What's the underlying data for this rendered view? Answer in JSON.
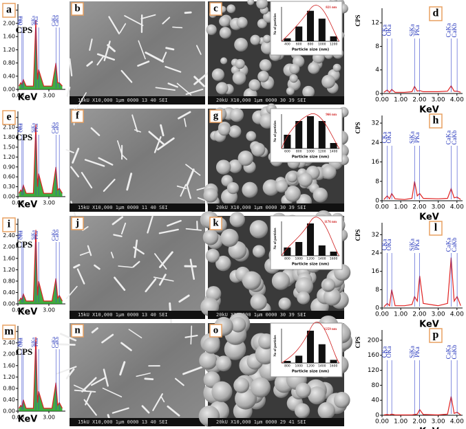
{
  "chart_data": [
    {
      "type": "line",
      "label": "a",
      "x_label": "KeV",
      "y_label": "CPS",
      "color": "#1e9e1e",
      "x": [
        0.1,
        0.28,
        0.39,
        0.52,
        0.8,
        1.5,
        1.74,
        1.9,
        2.01,
        2.5,
        3.3,
        3.69,
        3.85,
        4.01,
        4.3
      ],
      "values": [
        0.1,
        0.2,
        0.15,
        0.3,
        0.1,
        0.1,
        2.1,
        0.3,
        0.6,
        0.1,
        0.1,
        0.8,
        0.2,
        0.2,
        0.1
      ],
      "xlim": [
        0,
        4.6
      ],
      "ylim": [
        0,
        2.5
      ],
      "xticks": [
        {
          "value": 0,
          "label": "0.00"
        },
        {
          "value": 3,
          "label": "3.00"
        }
      ],
      "yticks": [
        {
          "value": 0,
          "label": "0.00"
        },
        {
          "value": 0.4,
          "label": "0.40"
        },
        {
          "value": 0.8,
          "label": "0.80"
        },
        {
          "value": 1.2,
          "label": "1.20"
        },
        {
          "value": 1.6,
          "label": "1.60"
        },
        {
          "value": 2,
          "label": "2.00"
        },
        {
          "value": 2.4,
          "label": "2.4"
        }
      ],
      "annotations": [
        {
          "text": "NKa",
          "x": 0.39
        },
        {
          "text": "OKa",
          "x": 0.52
        },
        {
          "text": "SiKa",
          "x": 1.74
        },
        {
          "text": "PKa",
          "x": 2.01
        },
        {
          "text": "CaKa",
          "x": 3.69
        },
        {
          "text": "CaKb",
          "x": 4.01
        }
      ]
    },
    {
      "type": "bar",
      "label": "c",
      "title": "821 nm",
      "x_label": "Particle size (nm)",
      "y_label": "No of particles",
      "color": "#111111",
      "categories": [
        "400",
        "600",
        "800",
        "1000",
        "1200"
      ],
      "values": [
        6,
        30,
        62,
        46,
        10
      ],
      "ylim": [
        0,
        70
      ]
    },
    {
      "type": "line",
      "label": "d",
      "x_label": "KeV",
      "y_label": "CPS",
      "color": "#e02020",
      "x": [
        0.1,
        0.28,
        0.4,
        0.52,
        0.7,
        1.2,
        1.6,
        1.74,
        1.88,
        2.01,
        2.2,
        3.0,
        3.5,
        3.69,
        3.85,
        4.01,
        4.2
      ],
      "values": [
        0.2,
        0.6,
        0.2,
        0.7,
        0.2,
        0.2,
        0.3,
        1.2,
        0.4,
        0.5,
        0.3,
        0.3,
        0.4,
        1.3,
        0.4,
        0.4,
        0.2
      ],
      "xlim": [
        0,
        4.3
      ],
      "ylim": [
        0,
        14
      ],
      "xticks": [
        {
          "value": 0,
          "label": "0.00"
        },
        {
          "value": 1,
          "label": "1.00"
        },
        {
          "value": 2,
          "label": "2.00"
        },
        {
          "value": 3,
          "label": "3.00"
        },
        {
          "value": 4,
          "label": "4.00"
        }
      ],
      "yticks": [
        0,
        4,
        8,
        12
      ],
      "annotations": [
        {
          "text": "CKa",
          "x": 0.28
        },
        {
          "text": "OKa",
          "x": 0.52
        },
        {
          "text": "SiKa",
          "x": 1.74
        },
        {
          "text": "PKa",
          "x": 2.01
        },
        {
          "text": "CaKa",
          "x": 3.69
        },
        {
          "text": "CaKb",
          "x": 4.01
        }
      ]
    },
    {
      "type": "line",
      "label": "e",
      "x_label": "KeV",
      "y_label": "CPS",
      "color": "#1e9e1e",
      "x": [
        0.1,
        0.28,
        0.39,
        0.52,
        0.8,
        1.5,
        1.74,
        1.9,
        2.01,
        2.5,
        3.3,
        3.69,
        3.85,
        4.01,
        4.3
      ],
      "values": [
        0.1,
        0.2,
        0.15,
        0.35,
        0.1,
        0.1,
        2.2,
        0.3,
        0.7,
        0.1,
        0.1,
        0.9,
        0.2,
        0.25,
        0.1
      ],
      "xlim": [
        0,
        4.6
      ],
      "ylim": [
        0,
        2.5
      ],
      "xticks": [
        {
          "value": 0,
          "label": "0.00"
        },
        {
          "value": 3,
          "label": "3.00"
        }
      ],
      "yticks": [
        {
          "value": 0,
          "label": "0.00"
        },
        {
          "value": 0.3,
          "label": "0.30"
        },
        {
          "value": 0.6,
          "label": "0.60"
        },
        {
          "value": 0.9,
          "label": "0.90"
        },
        {
          "value": 1.2,
          "label": "1.20"
        },
        {
          "value": 1.5,
          "label": "1.50"
        },
        {
          "value": 1.8,
          "label": "1.80"
        },
        {
          "value": 2.1,
          "label": "2.10"
        },
        {
          "value": 2.4,
          "label": "2.40"
        }
      ],
      "annotations": [
        {
          "text": "NKa",
          "x": 0.39
        },
        {
          "text": "OKa",
          "x": 0.52
        },
        {
          "text": "SiKa",
          "x": 1.74
        },
        {
          "text": "PKa",
          "x": 2.01
        },
        {
          "text": "CaKa",
          "x": 3.69
        },
        {
          "text": "CaKb",
          "x": 4.01
        }
      ]
    },
    {
      "type": "bar",
      "label": "g",
      "title": "966 nm",
      "x_label": "Particle size (nm)",
      "y_label": "No of particles",
      "color": "#111111",
      "categories": [
        "600",
        "800",
        "1000",
        "1200",
        "1400"
      ],
      "values": [
        20,
        40,
        47,
        40,
        8
      ],
      "ylim": [
        0,
        50
      ]
    },
    {
      "type": "line",
      "label": "h",
      "x_label": "KeV",
      "y_label": "CPS",
      "color": "#e02020",
      "x": [
        0.1,
        0.28,
        0.4,
        0.52,
        0.7,
        1.2,
        1.6,
        1.74,
        1.88,
        2.01,
        2.2,
        3.0,
        3.5,
        3.69,
        3.85,
        4.01,
        4.2
      ],
      "values": [
        0.5,
        2,
        0.8,
        3,
        0.8,
        0.5,
        1,
        8,
        2,
        3,
        1,
        0.8,
        1,
        5,
        1.2,
        1.5,
        0.5
      ],
      "xlim": [
        0,
        4.3
      ],
      "ylim": [
        0,
        34
      ],
      "xticks": [
        {
          "value": 0,
          "label": "0.00"
        },
        {
          "value": 1,
          "label": "1.00"
        },
        {
          "value": 2,
          "label": "2.00"
        },
        {
          "value": 3,
          "label": "3.00"
        },
        {
          "value": 4,
          "label": "4.00"
        }
      ],
      "yticks": [
        0,
        8,
        16,
        24,
        32
      ],
      "annotations": [
        {
          "text": "CKa",
          "x": 0.28
        },
        {
          "text": "OKa",
          "x": 0.52
        },
        {
          "text": "SiKa",
          "x": 1.74
        },
        {
          "text": "PKa",
          "x": 2.01
        },
        {
          "text": "CaKa",
          "x": 3.69
        },
        {
          "text": "CaKb",
          "x": 4.01
        }
      ]
    },
    {
      "type": "line",
      "label": "i",
      "x_label": "KeV",
      "y_label": "CPS",
      "color": "#1e9e1e",
      "x": [
        0.1,
        0.28,
        0.39,
        0.52,
        0.8,
        1.5,
        1.74,
        1.9,
        2.01,
        2.5,
        3.3,
        3.69,
        3.85,
        4.01,
        4.3
      ],
      "values": [
        0.1,
        0.2,
        0.15,
        0.35,
        0.1,
        0.1,
        2.6,
        0.3,
        0.8,
        0.1,
        0.1,
        0.9,
        0.2,
        0.3,
        0.1
      ],
      "xlim": [
        0,
        4.6
      ],
      "ylim": [
        0,
        2.9
      ],
      "xticks": [
        {
          "value": 0,
          "label": "0.00"
        },
        {
          "value": 3,
          "label": "3.00"
        }
      ],
      "yticks": [
        {
          "value": 0,
          "label": "0.00"
        },
        {
          "value": 0.4,
          "label": "0.40"
        },
        {
          "value": 0.8,
          "label": "0.80"
        },
        {
          "value": 1.2,
          "label": "1.20"
        },
        {
          "value": 1.6,
          "label": "1.60"
        },
        {
          "value": 2,
          "label": "2.00"
        },
        {
          "value": 2.4,
          "label": "2.40"
        },
        {
          "value": 2.8,
          "label": "2.80"
        }
      ],
      "annotations": [
        {
          "text": "NKa",
          "x": 0.39
        },
        {
          "text": "OKa",
          "x": 0.52
        },
        {
          "text": "SiKa",
          "x": 1.74
        },
        {
          "text": "PKa",
          "x": 2.01
        },
        {
          "text": "CaKa",
          "x": 3.69
        },
        {
          "text": "CaKb",
          "x": 4.01
        }
      ]
    },
    {
      "type": "bar",
      "label": "k",
      "title": "1176 nm",
      "x_label": "Particle size (nm)",
      "y_label": "No of particles",
      "color": "#111111",
      "categories": [
        "800",
        "1000",
        "1200",
        "1400",
        "1600"
      ],
      "values": [
        60,
        100,
        235,
        75,
        30
      ],
      "ylim": [
        0,
        250
      ]
    },
    {
      "type": "line",
      "label": "l",
      "x_label": "KeV",
      "y_label": "CPS",
      "color": "#e02020",
      "x": [
        0.1,
        0.28,
        0.4,
        0.52,
        0.7,
        1.2,
        1.6,
        1.74,
        1.88,
        2.01,
        2.2,
        3.0,
        3.5,
        3.69,
        3.85,
        4.01,
        4.2
      ],
      "values": [
        0.5,
        2,
        1,
        8,
        1,
        1,
        1.5,
        5,
        3,
        14,
        2,
        1,
        2,
        22,
        3,
        5,
        1
      ],
      "xlim": [
        0,
        4.3
      ],
      "ylim": [
        0,
        36
      ],
      "xticks": [
        {
          "value": 0,
          "label": "0.00"
        },
        {
          "value": 1,
          "label": "1.00"
        },
        {
          "value": 2,
          "label": "2.00"
        },
        {
          "value": 3,
          "label": "3.00"
        },
        {
          "value": 4,
          "label": "4.00"
        }
      ],
      "yticks": [
        0,
        8,
        16,
        24,
        32
      ],
      "annotations": [
        {
          "text": "CKa",
          "x": 0.28
        },
        {
          "text": "OKa",
          "x": 0.52
        },
        {
          "text": "SiKa",
          "x": 1.74
        },
        {
          "text": "PKa",
          "x": 2.01
        },
        {
          "text": "CaKa",
          "x": 3.69
        },
        {
          "text": "CaKb",
          "x": 4.01
        }
      ]
    },
    {
      "type": "line",
      "label": "m",
      "x_label": "KeV",
      "y_label": "CPS",
      "color": "#1e9e1e",
      "x": [
        0.1,
        0.28,
        0.39,
        0.52,
        0.8,
        1.5,
        1.74,
        1.9,
        2.01,
        2.5,
        3.3,
        3.69,
        3.85,
        4.01,
        4.3
      ],
      "values": [
        0.1,
        0.2,
        0.15,
        0.4,
        0.1,
        0.1,
        2.6,
        0.3,
        0.7,
        0.1,
        0.1,
        1.0,
        0.2,
        0.3,
        0.1
      ],
      "xlim": [
        0,
        4.6
      ],
      "ylim": [
        0,
        2.9
      ],
      "xticks": [
        {
          "value": 0,
          "label": "0.00"
        },
        {
          "value": 3,
          "label": "3.00"
        }
      ],
      "yticks": [
        {
          "value": 0,
          "label": "0.00"
        },
        {
          "value": 0.4,
          "label": "0.40"
        },
        {
          "value": 0.8,
          "label": "0.80"
        },
        {
          "value": 1.2,
          "label": "1.20"
        },
        {
          "value": 1.6,
          "label": "1.60"
        },
        {
          "value": 2,
          "label": "2.00"
        },
        {
          "value": 2.4,
          "label": "2.40"
        },
        {
          "value": 2.8,
          "label": "2.80"
        }
      ],
      "annotations": [
        {
          "text": "NKa",
          "x": 0.39
        },
        {
          "text": "OKa",
          "x": 0.52
        },
        {
          "text": "SiKa",
          "x": 1.74
        },
        {
          "text": "PKa",
          "x": 2.01
        },
        {
          "text": "CaKa",
          "x": 3.69
        },
        {
          "text": "CaKb",
          "x": 4.01
        }
      ]
    },
    {
      "type": "bar",
      "label": "o",
      "title": "1259 nm",
      "x_label": "Particle size (nm)",
      "y_label": "No of particles",
      "color": "#111111",
      "categories": [
        "800",
        "1000",
        "1200",
        "1400",
        "1600"
      ],
      "values": [
        20,
        70,
        310,
        180,
        30
      ],
      "ylim": [
        0,
        330
      ]
    },
    {
      "type": "line",
      "label": "p",
      "x_label": "KeV",
      "y_label": "CPS",
      "color": "#e02020",
      "x": [
        0.1,
        0.28,
        0.4,
        0.52,
        0.7,
        1.2,
        1.6,
        1.74,
        1.88,
        2.01,
        2.2,
        3.0,
        3.5,
        3.69,
        3.85,
        4.01,
        4.2
      ],
      "values": [
        1,
        2,
        1,
        3,
        1,
        1,
        1,
        2,
        3,
        15,
        2,
        1,
        3,
        50,
        5,
        8,
        1
      ],
      "xlim": [
        0,
        4.3
      ],
      "ylim": [
        0,
        220
      ],
      "xticks": [
        {
          "value": 0,
          "label": "0.00"
        },
        {
          "value": 1,
          "label": "1.00"
        },
        {
          "value": 2,
          "label": "2.00"
        },
        {
          "value": 3,
          "label": "3.00"
        },
        {
          "value": 4,
          "label": "4.00"
        }
      ],
      "yticks": [
        0,
        40,
        80,
        120,
        160,
        200
      ],
      "annotations": [
        {
          "text": "CKa",
          "x": 0.28
        },
        {
          "text": "OKa",
          "x": 0.52
        },
        {
          "text": "SiKa",
          "x": 1.74
        },
        {
          "text": "PKa",
          "x": 2.01
        },
        {
          "text": "CaKa",
          "x": 3.69
        },
        {
          "text": "CaKb",
          "x": 4.01
        }
      ]
    }
  ],
  "images": [
    {
      "label": "b",
      "caption": "15kU X10,000 1μm 0000 13 40 SEI"
    },
    {
      "label": "c",
      "caption": "20kU X10,000 1μm 0000 30 39 SEI"
    },
    {
      "label": "f",
      "caption": "15kU X10,000 1μm 0000 11 40 SEI"
    },
    {
      "label": "g",
      "caption": "20kU X10,000 1μm 0000 30 39 SEI"
    },
    {
      "label": "j",
      "caption": "15kU X10,000 1μm 0000 13 40 SEI"
    },
    {
      "label": "k",
      "caption": "20kU X10,000 1μm 0000 30 39 SEI"
    },
    {
      "label": "n",
      "caption": "15kU X10,000 1μm 0000 13 40 SEI"
    },
    {
      "label": "o",
      "caption": "20kU X10,000 1μm 0000 29 41 SEI"
    }
  ]
}
